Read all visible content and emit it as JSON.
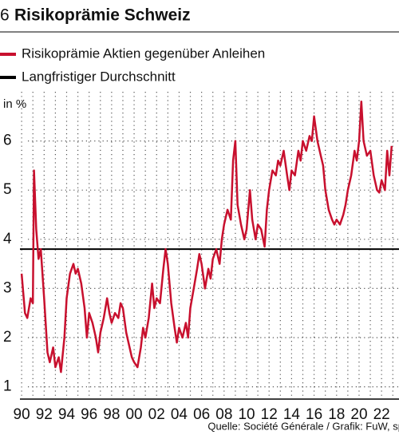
{
  "chart_data": {
    "type": "line",
    "number": "6",
    "title": "Risikoprämie Schweiz",
    "y_label": "in %",
    "source": "Quelle: Société Générale / Grafik: FuW, sp",
    "ylim": [
      0.75,
      7
    ],
    "yticks": [
      1,
      2,
      3,
      4,
      5,
      6
    ],
    "xlim": [
      1989.85,
      2023.55
    ],
    "xticks": [
      {
        "value": 1990,
        "label": "90"
      },
      {
        "value": 1992,
        "label": "92"
      },
      {
        "value": 1994,
        "label": "94"
      },
      {
        "value": 1996,
        "label": "96"
      },
      {
        "value": 1998,
        "label": "98"
      },
      {
        "value": 2000,
        "label": "00"
      },
      {
        "value": 2002,
        "label": "02"
      },
      {
        "value": 2004,
        "label": "04"
      },
      {
        "value": 2006,
        "label": "06"
      },
      {
        "value": 2008,
        "label": "08"
      },
      {
        "value": 2010,
        "label": "10"
      },
      {
        "value": 2012,
        "label": "12"
      },
      {
        "value": 2014,
        "label": "14"
      },
      {
        "value": 2016,
        "label": "16"
      },
      {
        "value": 2018,
        "label": "18"
      },
      {
        "value": 2020,
        "label": "20"
      },
      {
        "value": 2022,
        "label": "22"
      }
    ],
    "xminor_ticks": [
      1991,
      1993,
      1995,
      1997,
      1999,
      2001,
      2003,
      2005,
      2007,
      2009,
      2011,
      2013,
      2015,
      2017,
      2019,
      2021,
      2023
    ],
    "grid": true,
    "series": [
      {
        "name": "Risikoprämie Aktien gegenüber Anleihen",
        "color": "#c8102e",
        "x": [
          1990.0,
          1990.3,
          1990.5,
          1990.8,
          1991.0,
          1991.1,
          1991.3,
          1991.5,
          1991.7,
          1992.0,
          1992.3,
          1992.5,
          1992.8,
          1993.0,
          1993.3,
          1993.5,
          1993.8,
          1994.0,
          1994.3,
          1994.6,
          1994.8,
          1995.0,
          1995.3,
          1995.6,
          1995.8,
          1996.0,
          1996.3,
          1996.6,
          1996.8,
          1997.0,
          1997.3,
          1997.6,
          1997.8,
          1998.0,
          1998.3,
          1998.6,
          1998.8,
          1999.0,
          1999.3,
          1999.6,
          1999.8,
          2000.0,
          2000.3,
          2000.6,
          2000.8,
          2001.0,
          2001.3,
          2001.6,
          2001.8,
          2002.0,
          2002.3,
          2002.6,
          2002.8,
          2003.0,
          2003.3,
          2003.6,
          2003.8,
          2004.0,
          2004.3,
          2004.6,
          2004.8,
          2005.0,
          2005.3,
          2005.6,
          2005.8,
          2006.0,
          2006.3,
          2006.6,
          2006.8,
          2007.0,
          2007.3,
          2007.6,
          2007.8,
          2008.0,
          2008.3,
          2008.6,
          2008.8,
          2009.0,
          2009.2,
          2009.5,
          2009.8,
          2010.0,
          2010.3,
          2010.5,
          2010.8,
          2011.0,
          2011.3,
          2011.6,
          2011.8,
          2012.0,
          2012.3,
          2012.6,
          2012.8,
          2013.0,
          2013.3,
          2013.6,
          2013.8,
          2014.0,
          2014.3,
          2014.6,
          2014.8,
          2015.0,
          2015.3,
          2015.6,
          2015.8,
          2016.0,
          2016.3,
          2016.6,
          2016.8,
          2017.0,
          2017.3,
          2017.6,
          2017.8,
          2018.0,
          2018.3,
          2018.6,
          2018.8,
          2019.0,
          2019.3,
          2019.6,
          2019.8,
          2020.0,
          2020.2,
          2020.4,
          2020.7,
          2021.0,
          2021.3,
          2021.6,
          2021.8,
          2022.0,
          2022.3,
          2022.5,
          2022.7,
          2022.9
        ],
        "values": [
          3.3,
          2.5,
          2.4,
          2.8,
          2.7,
          5.4,
          4.2,
          3.6,
          3.8,
          2.8,
          1.7,
          1.5,
          1.8,
          1.4,
          1.6,
          1.3,
          2.0,
          2.8,
          3.3,
          3.5,
          3.3,
          3.4,
          3.1,
          2.6,
          2.0,
          2.5,
          2.3,
          2.0,
          1.7,
          2.1,
          2.4,
          2.8,
          2.5,
          2.3,
          2.5,
          2.4,
          2.7,
          2.6,
          2.1,
          1.8,
          1.6,
          1.5,
          1.4,
          1.8,
          2.2,
          2.0,
          2.4,
          3.1,
          2.6,
          2.8,
          2.7,
          3.4,
          3.8,
          3.5,
          2.7,
          2.2,
          1.9,
          2.2,
          2.0,
          2.3,
          2.0,
          2.6,
          3.0,
          3.4,
          3.7,
          3.5,
          3.0,
          3.4,
          3.2,
          3.6,
          3.8,
          3.5,
          4.0,
          4.3,
          4.6,
          4.4,
          5.6,
          6.0,
          4.7,
          4.3,
          4.0,
          4.2,
          5.0,
          4.4,
          4.0,
          4.3,
          4.2,
          3.85,
          4.6,
          5.0,
          5.4,
          5.3,
          5.6,
          5.5,
          5.8,
          5.3,
          5.0,
          5.4,
          5.3,
          5.8,
          5.6,
          6.0,
          5.8,
          6.1,
          6.0,
          6.5,
          6.0,
          5.7,
          5.5,
          5.0,
          4.6,
          4.4,
          4.3,
          4.4,
          4.3,
          4.5,
          4.7,
          5.0,
          5.3,
          5.8,
          5.6,
          6.0,
          6.8,
          6.0,
          5.7,
          5.8,
          5.3,
          5.0,
          4.95,
          5.2,
          5.0,
          5.8,
          5.3,
          5.9
        ]
      },
      {
        "name": "Langfristiger Durchschnitt",
        "color": "#000000",
        "x": [
          1989.85,
          2023.55
        ],
        "values": [
          3.8,
          3.8
        ]
      }
    ]
  }
}
